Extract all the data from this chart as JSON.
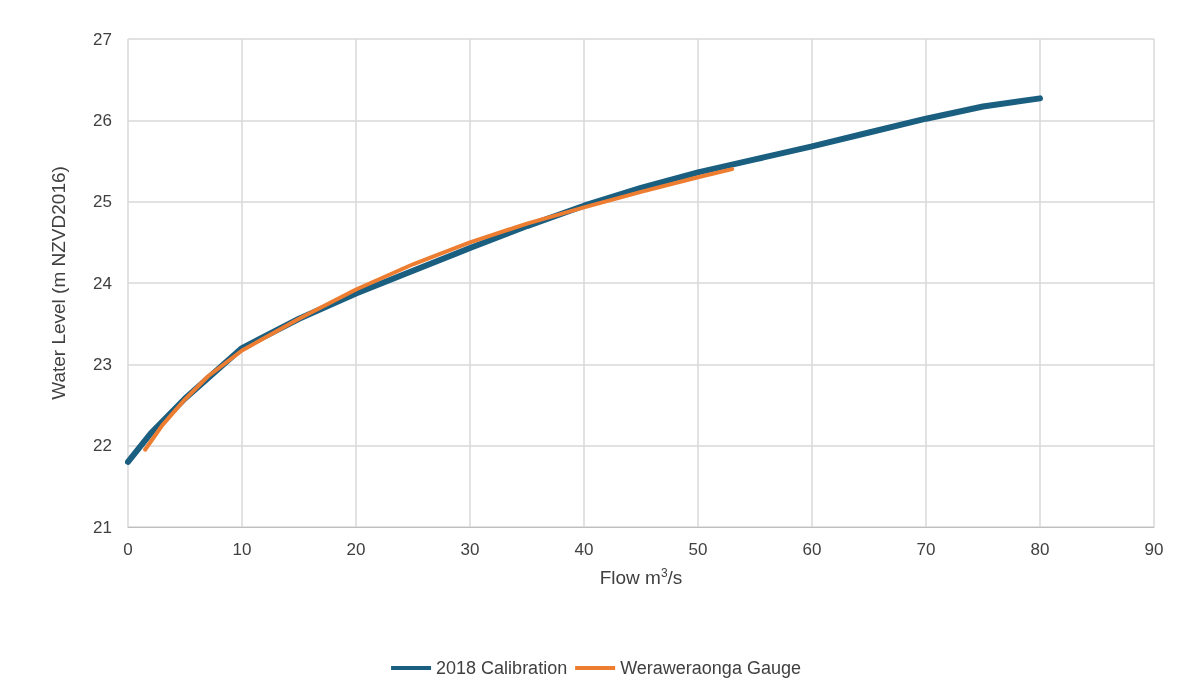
{
  "chart_data": {
    "type": "line",
    "xlabel": "Flow m$^{3}$/s",
    "ylabel": "Water Level (m NZVD2016)",
    "xlim": [
      0,
      90
    ],
    "xticks": [
      0,
      10,
      20,
      30,
      40,
      50,
      60,
      70,
      80,
      90
    ],
    "ylim": [
      21,
      27
    ],
    "yticks": [
      21,
      22,
      23,
      24,
      25,
      26,
      27
    ],
    "grid": true,
    "legend": "bottom",
    "marker": "none",
    "line_style": "solid",
    "series": [
      {
        "name": "2018 Calibration",
        "color": "#1a5e80",
        "x": [
          0,
          2,
          5,
          10,
          15,
          20,
          25,
          30,
          35,
          40,
          45,
          50,
          55,
          60,
          65,
          70,
          75,
          80
        ],
        "values": [
          21.8,
          22.15,
          22.58,
          23.2,
          23.56,
          23.87,
          24.15,
          24.43,
          24.7,
          24.95,
          25.17,
          25.36,
          25.52,
          25.68,
          25.85,
          26.02,
          26.17,
          26.27
        ]
      },
      {
        "name": "Weraweraonga Gauge",
        "color": "#ed7d31",
        "x": [
          1.5,
          3,
          5,
          7,
          10,
          15,
          20,
          25,
          30,
          35,
          40,
          45,
          50,
          53
        ],
        "values": [
          21.95,
          22.25,
          22.57,
          22.85,
          23.17,
          23.56,
          23.92,
          24.23,
          24.5,
          24.73,
          24.93,
          25.12,
          25.3,
          25.4
        ]
      }
    ]
  }
}
